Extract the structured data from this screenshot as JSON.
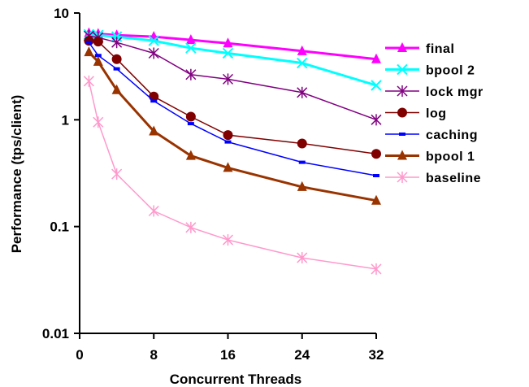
{
  "chart_data": {
    "type": "line",
    "title": "",
    "xlabel": "Concurrent Threads",
    "ylabel": "Performance (tps/client)",
    "xlim": [
      0,
      32
    ],
    "ylim": [
      0.01,
      10
    ],
    "y_scale": "log",
    "grid": false,
    "legend_position": "right",
    "x_ticks": [
      "0",
      "8",
      "16",
      "24",
      "32"
    ],
    "y_ticks": [
      "10",
      "1",
      "0.1",
      "0.01"
    ],
    "series": [
      {
        "name": "final",
        "color": "#ff00ff",
        "marker": "triangle",
        "line_width": 3,
        "x": [
          1,
          2,
          4,
          8,
          12,
          16,
          24,
          32
        ],
        "y": [
          6.5,
          6.4,
          6.2,
          6.0,
          5.6,
          5.2,
          4.4,
          3.7
        ]
      },
      {
        "name": "bpool 2",
        "color": "#00ffff",
        "marker": "x",
        "line_width": 3,
        "x": [
          1,
          2,
          4,
          8,
          12,
          16,
          24,
          32
        ],
        "y": [
          6.3,
          6.2,
          6.0,
          5.5,
          4.7,
          4.2,
          3.4,
          2.1
        ]
      },
      {
        "name": "lock mgr",
        "color": "#800080",
        "marker": "star",
        "line_width": 1.5,
        "x": [
          1,
          2,
          4,
          8,
          12,
          16,
          24,
          32
        ],
        "y": [
          6.1,
          5.9,
          5.3,
          4.2,
          2.65,
          2.4,
          1.8,
          1.0
        ]
      },
      {
        "name": "log",
        "color": "#800000",
        "marker": "circle",
        "line_width": 1.5,
        "x": [
          1,
          2,
          4,
          8,
          12,
          16,
          24,
          32
        ],
        "y": [
          5.5,
          5.4,
          3.7,
          1.65,
          1.07,
          0.72,
          0.6,
          0.48
        ]
      },
      {
        "name": "caching",
        "color": "#0000ff",
        "marker": "dash",
        "line_width": 1.5,
        "x": [
          1,
          2,
          4,
          8,
          12,
          16,
          24,
          32
        ],
        "y": [
          5.3,
          4.0,
          3.0,
          1.5,
          0.92,
          0.62,
          0.4,
          0.3
        ]
      },
      {
        "name": "bpool 1",
        "color": "#993300",
        "marker": "triangle",
        "line_width": 3,
        "x": [
          1,
          2,
          4,
          8,
          12,
          16,
          24,
          32
        ],
        "y": [
          4.3,
          3.5,
          1.9,
          0.78,
          0.46,
          0.355,
          0.235,
          0.175
        ]
      },
      {
        "name": "baseline",
        "color": "#ff99cc",
        "marker": "star",
        "line_width": 1.5,
        "x": [
          1,
          2,
          4,
          8,
          12,
          16,
          24,
          32
        ],
        "y": [
          2.3,
          0.95,
          0.31,
          0.14,
          0.098,
          0.075,
          0.051,
          0.04
        ]
      }
    ]
  }
}
